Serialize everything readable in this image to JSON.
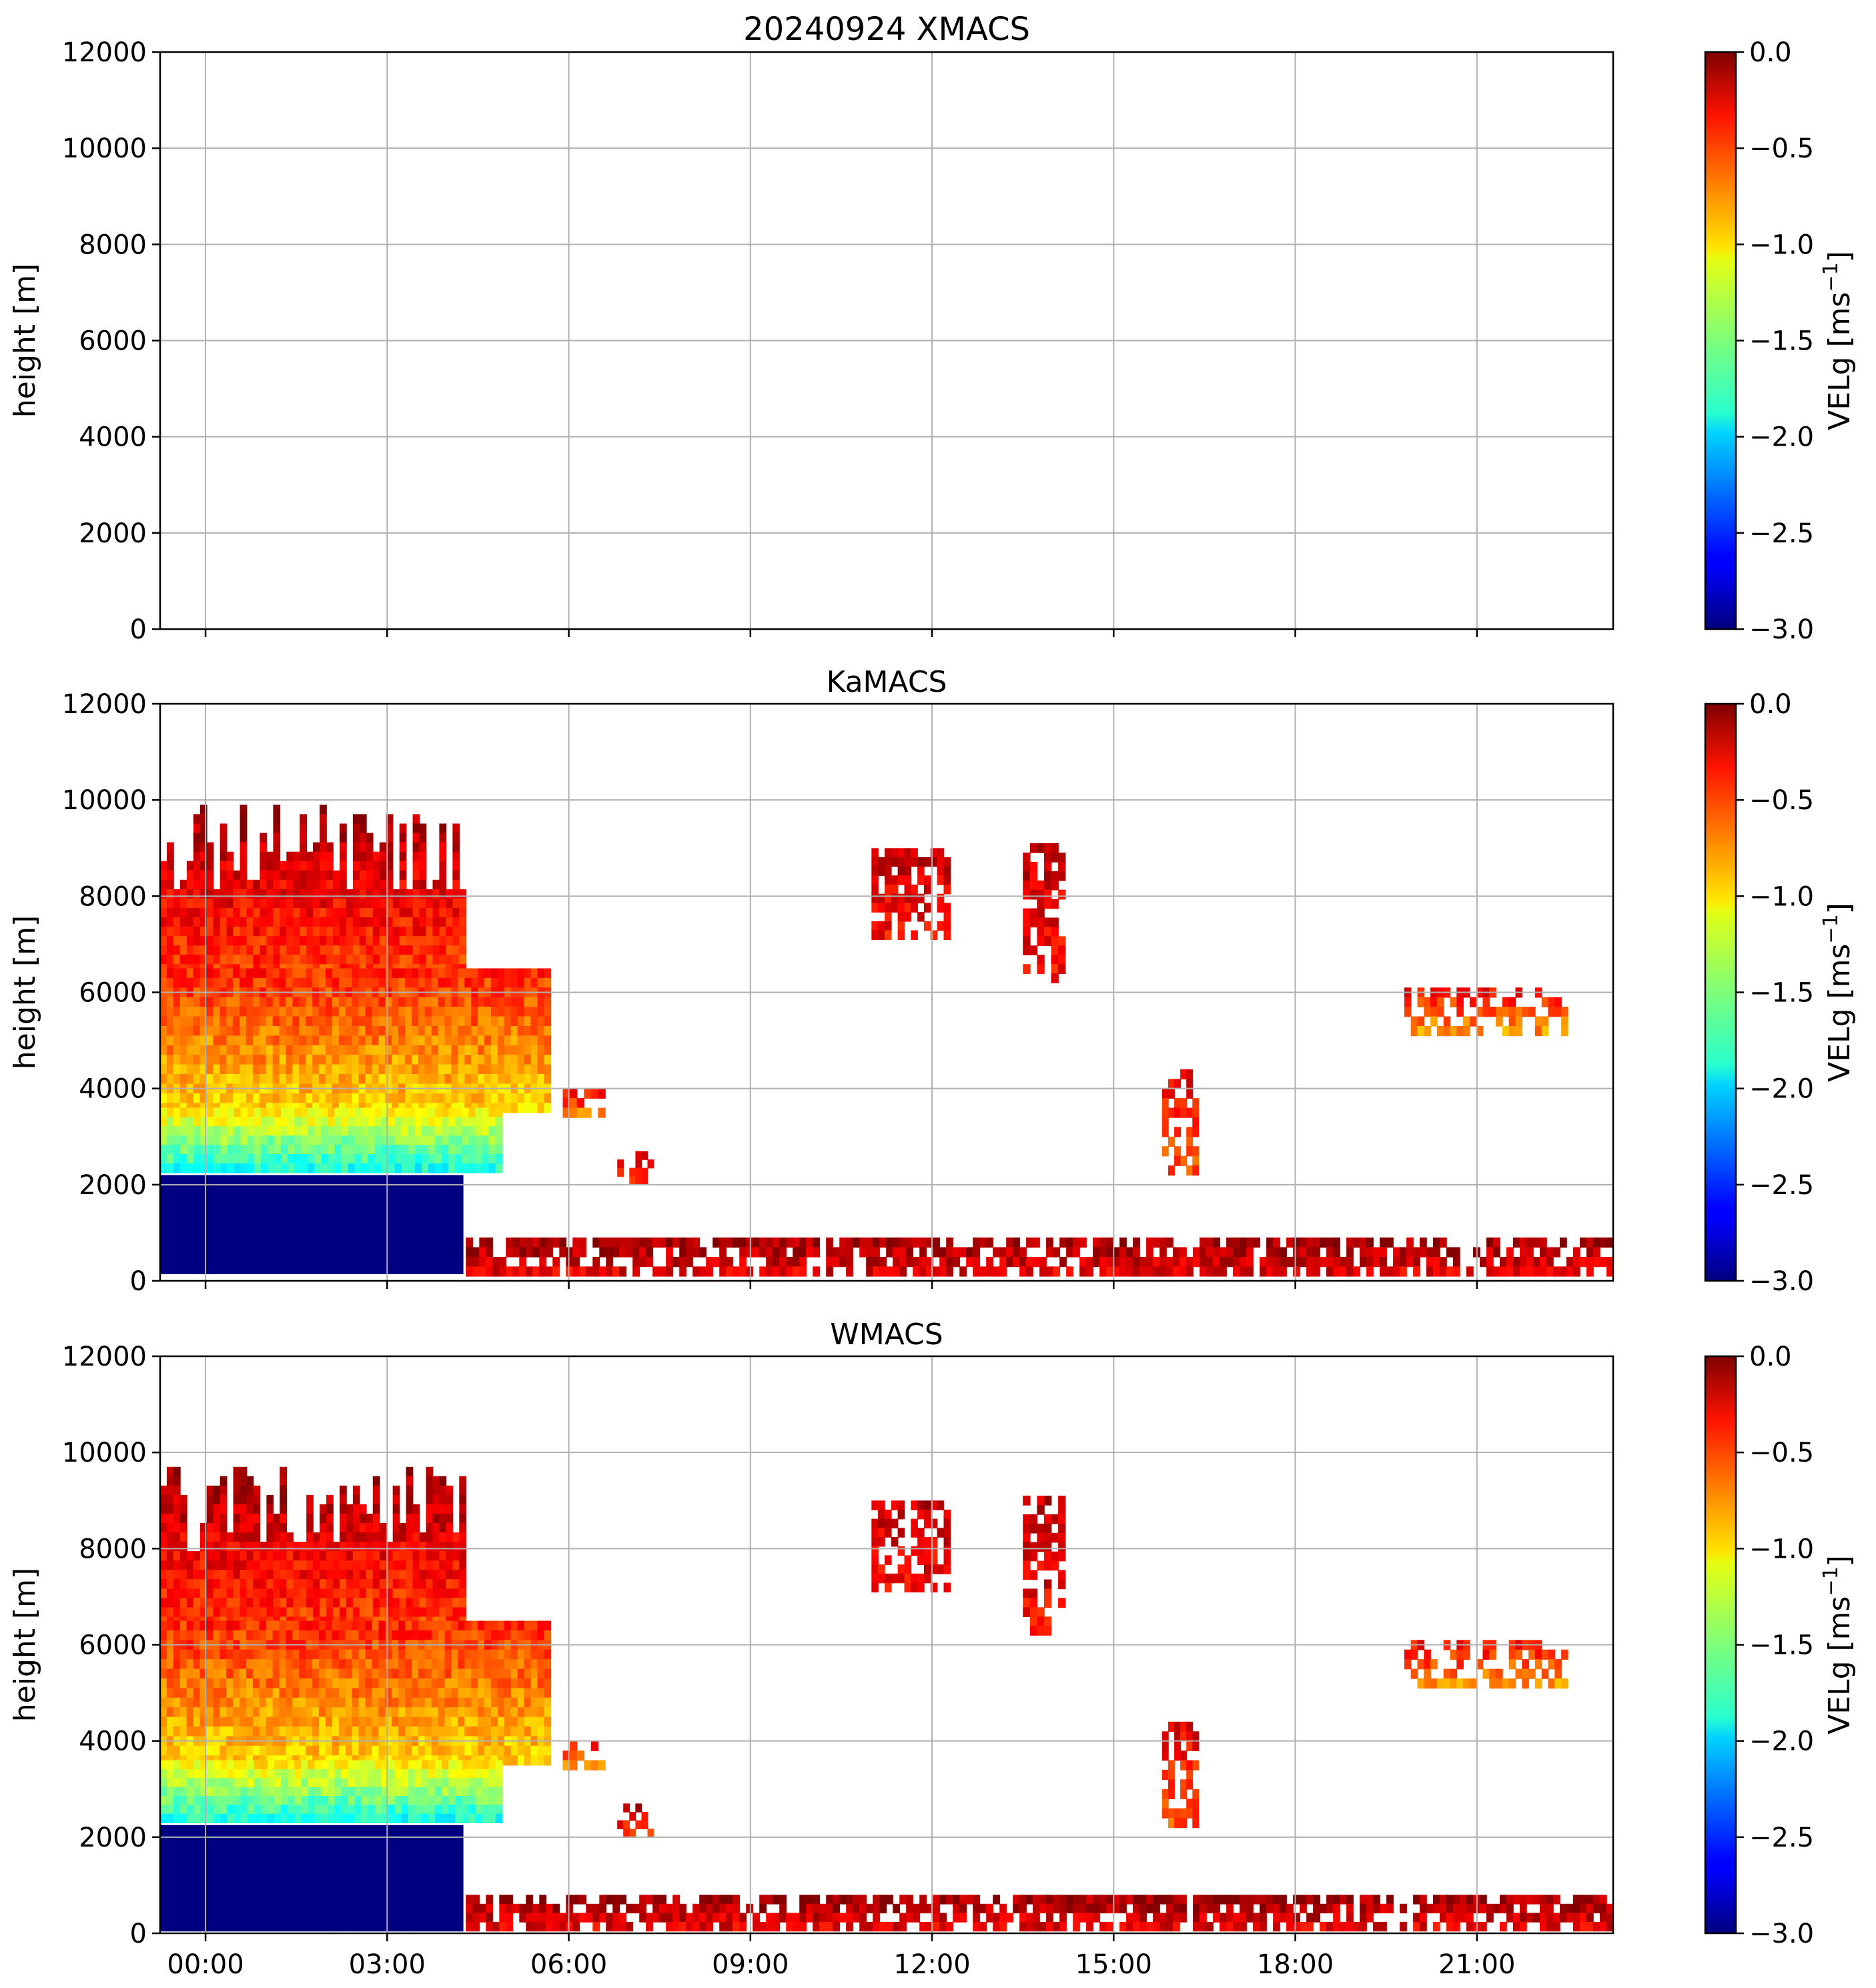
{
  "chart_data": [
    {
      "type": "heatmap",
      "title": "20240924 XMACS",
      "xlabel": "",
      "ylabel": "height [m]",
      "xlim": [
        -0.75,
        23.25
      ],
      "ylim": [
        0,
        12000
      ],
      "x_ticks": [
        0,
        3,
        6,
        9,
        12,
        15,
        18,
        21
      ],
      "x_tick_labels": [
        "00:00",
        "03:00",
        "06:00",
        "09:00",
        "12:00",
        "15:00",
        "18:00",
        "21:00"
      ],
      "y_ticks": [
        0,
        2000,
        4000,
        6000,
        8000,
        10000,
        12000
      ],
      "y_tick_labels": [
        "0",
        "2000",
        "4000",
        "6000",
        "8000",
        "10000",
        "12000"
      ],
      "show_x_tick_labels": false,
      "grid": true,
      "colorbar": {
        "label": "VELg [ms$^{-1}$]",
        "label_text": "VELg [ms",
        "label_exponent": "−1",
        "label_close": "]",
        "range": [
          -3.0,
          0.0
        ],
        "ticks": [
          0.0,
          -0.5,
          -1.0,
          -1.5,
          -2.0,
          -2.5,
          -3.0
        ],
        "tick_labels": [
          "0.0",
          "−0.5",
          "−1.0",
          "−1.5",
          "−2.0",
          "−2.5",
          "−3.0"
        ],
        "colormap": "jet"
      },
      "echoes": []
    },
    {
      "type": "heatmap",
      "title": "KaMACS",
      "xlabel": "",
      "ylabel": "height [m]",
      "xlim": [
        -0.75,
        23.25
      ],
      "ylim": [
        0,
        12000
      ],
      "x_ticks": [
        0,
        3,
        6,
        9,
        12,
        15,
        18,
        21
      ],
      "x_tick_labels": [
        "00:00",
        "03:00",
        "06:00",
        "09:00",
        "12:00",
        "15:00",
        "18:00",
        "21:00"
      ],
      "y_ticks": [
        0,
        2000,
        4000,
        6000,
        8000,
        10000,
        12000
      ],
      "y_tick_labels": [
        "0",
        "2000",
        "4000",
        "6000",
        "8000",
        "10000",
        "12000"
      ],
      "show_x_tick_labels": false,
      "grid": true,
      "colorbar": {
        "label": "VELg [ms$^{-1}$]",
        "label_text": "VELg [ms",
        "label_exponent": "−1",
        "label_close": "]",
        "range": [
          -3.0,
          0.0
        ],
        "ticks": [
          0.0,
          -0.5,
          -1.0,
          -1.5,
          -2.0,
          -2.5,
          -3.0
        ],
        "tick_labels": [
          "0.0",
          "−0.5",
          "−1.0",
          "−1.5",
          "−2.0",
          "−2.5",
          "−3.0"
        ],
        "colormap": "jet"
      },
      "echoes": [
        {
          "name": "deep-cloud-top",
          "t0": -0.75,
          "t1": 4.3,
          "h0": 6000,
          "h1": 9900,
          "v_top": -0.1,
          "v_bottom": -0.6
        },
        {
          "name": "deep-cloud-mid",
          "t0": -0.75,
          "t1": 5.7,
          "h0": 3500,
          "h1": 6500,
          "v_top": -0.5,
          "v_bottom": -1.0
        },
        {
          "name": "deep-cloud-melting",
          "t0": -0.75,
          "t1": 4.9,
          "h0": 2250,
          "h1": 3600,
          "v_top": -1.1,
          "v_bottom": -1.8
        },
        {
          "name": "rain-below-melting",
          "t0": -0.75,
          "t1": 4.25,
          "h0": 150,
          "h1": 2200,
          "v_top": -3.0,
          "v_bottom": -3.0
        },
        {
          "name": "boundary-layer-clutter",
          "t0": 4.3,
          "t1": 23.25,
          "h0": 100,
          "h1": 900,
          "v_top": -0.1,
          "v_bottom": -0.3
        },
        {
          "name": "cirrus-1",
          "t0": 11.0,
          "t1": 12.3,
          "h0": 7100,
          "h1": 9000,
          "v_top": -0.2,
          "v_bottom": -0.4
        },
        {
          "name": "cirrus-2",
          "t0": 13.5,
          "t1": 14.2,
          "h0": 6200,
          "h1": 9100,
          "v_top": -0.2,
          "v_bottom": -0.4
        },
        {
          "name": "mid-level-patch-1",
          "t0": 5.9,
          "t1": 6.6,
          "h0": 3400,
          "h1": 4000,
          "v_top": -0.4,
          "v_bottom": -0.7
        },
        {
          "name": "mid-level-patch-2",
          "t0": 6.8,
          "t1": 7.4,
          "h0": 2000,
          "h1": 2700,
          "v_top": -0.2,
          "v_bottom": -0.5
        },
        {
          "name": "virga-column",
          "t0": 15.8,
          "t1": 16.4,
          "h0": 2200,
          "h1": 4400,
          "v_top": -0.3,
          "v_bottom": -0.6
        },
        {
          "name": "altocumulus",
          "t0": 19.8,
          "t1": 22.5,
          "h0": 5100,
          "h1": 6100,
          "v_top": -0.4,
          "v_bottom": -0.8
        }
      ]
    },
    {
      "type": "heatmap",
      "title": "WMACS",
      "xlabel": "",
      "ylabel": "height [m]",
      "xlim": [
        -0.75,
        23.25
      ],
      "ylim": [
        0,
        12000
      ],
      "x_ticks": [
        0,
        3,
        6,
        9,
        12,
        15,
        18,
        21
      ],
      "x_tick_labels": [
        "00:00",
        "03:00",
        "06:00",
        "09:00",
        "12:00",
        "15:00",
        "18:00",
        "21:00"
      ],
      "y_ticks": [
        0,
        2000,
        4000,
        6000,
        8000,
        10000,
        12000
      ],
      "y_tick_labels": [
        "0",
        "2000",
        "4000",
        "6000",
        "8000",
        "10000",
        "12000"
      ],
      "show_x_tick_labels": true,
      "grid": true,
      "colorbar": {
        "label": "VELg [ms$^{-1}$]",
        "label_text": "VELg [ms",
        "label_exponent": "−1",
        "label_close": "]",
        "range": [
          -3.0,
          0.0
        ],
        "ticks": [
          0.0,
          -0.5,
          -1.0,
          -1.5,
          -2.0,
          -2.5,
          -3.0
        ],
        "tick_labels": [
          "0.0",
          "−0.5",
          "−1.0",
          "−1.5",
          "−2.0",
          "−2.5",
          "−3.0"
        ],
        "colormap": "jet"
      },
      "echoes": [
        {
          "name": "deep-cloud-top",
          "t0": -0.75,
          "t1": 4.3,
          "h0": 6000,
          "h1": 9700,
          "v_top": -0.1,
          "v_bottom": -0.6
        },
        {
          "name": "deep-cloud-mid",
          "t0": -0.75,
          "t1": 5.7,
          "h0": 3500,
          "h1": 6500,
          "v_top": -0.5,
          "v_bottom": -1.0
        },
        {
          "name": "deep-cloud-melting",
          "t0": -0.75,
          "t1": 4.9,
          "h0": 2300,
          "h1": 3600,
          "v_top": -1.1,
          "v_bottom": -1.8
        },
        {
          "name": "rain-below-melting",
          "t0": -0.75,
          "t1": 4.25,
          "h0": 50,
          "h1": 2250,
          "v_top": -3.0,
          "v_bottom": -3.0
        },
        {
          "name": "boundary-layer-clutter",
          "t0": 4.3,
          "t1": 23.25,
          "h0": 50,
          "h1": 800,
          "v_top": -0.1,
          "v_bottom": -0.3
        },
        {
          "name": "cirrus-1",
          "t0": 11.0,
          "t1": 12.3,
          "h0": 7100,
          "h1": 9000,
          "v_top": -0.2,
          "v_bottom": -0.4
        },
        {
          "name": "cirrus-2",
          "t0": 13.5,
          "t1": 14.2,
          "h0": 6200,
          "h1": 9100,
          "v_top": -0.2,
          "v_bottom": -0.4
        },
        {
          "name": "mid-level-patch-1",
          "t0": 5.9,
          "t1": 6.6,
          "h0": 3400,
          "h1": 4000,
          "v_top": -0.4,
          "v_bottom": -0.7
        },
        {
          "name": "mid-level-patch-2",
          "t0": 6.8,
          "t1": 7.4,
          "h0": 2000,
          "h1": 2700,
          "v_top": -0.2,
          "v_bottom": -0.5
        },
        {
          "name": "virga-column",
          "t0": 15.8,
          "t1": 16.4,
          "h0": 2200,
          "h1": 4400,
          "v_top": -0.3,
          "v_bottom": -0.6
        },
        {
          "name": "altocumulus",
          "t0": 19.8,
          "t1": 22.5,
          "h0": 5100,
          "h1": 6100,
          "v_top": -0.4,
          "v_bottom": -0.8
        }
      ]
    }
  ]
}
